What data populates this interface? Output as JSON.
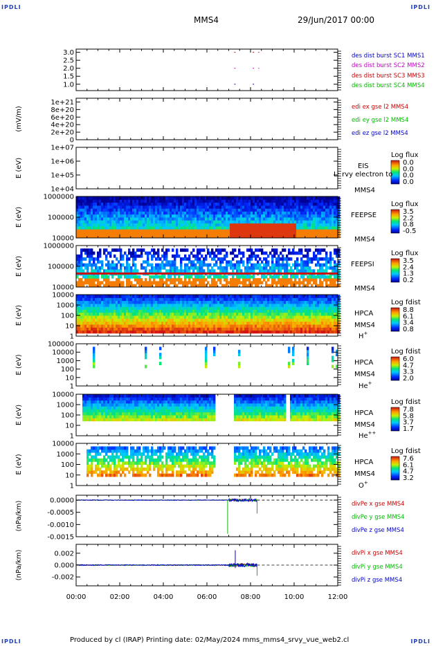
{
  "corners": {
    "tl": "IPDLI",
    "tr": "IPDLI",
    "bl": "IPDLI",
    "br": "IPDLI"
  },
  "header": {
    "spacecraft": "MMS4",
    "datetime": "29/Jun/2017 00:00"
  },
  "footer": "Produced by cl (IRAP)   Printing date: 02/May/2024   mms_mms4_srvy_vue_web2.cl",
  "chart_data": {
    "type": "multi-panel time series",
    "x_ticks": [
      "00:00",
      "02:00",
      "04:00",
      "06:00",
      "08:00",
      "10:00",
      "12:00"
    ],
    "xlim_hours": [
      0,
      12
    ],
    "panels": [
      {
        "id": "burst",
        "type": "scatter",
        "ylim": [
          0.6,
          3.2
        ],
        "yticks": [
          "3.0",
          "2.5",
          "2.0",
          "1.5",
          "1.0"
        ],
        "ytick_values": [
          3.0,
          2.5,
          2.0,
          1.5,
          1.0
        ],
        "legend": [
          {
            "label": "des dist burst SC1 MMS1",
            "color": "#0000cc"
          },
          {
            "label": "des dist burst SC2 MMS2",
            "color": "#cc00cc"
          },
          {
            "label": "des dist burst SC3 MMS3",
            "color": "#cc0000"
          },
          {
            "label": "des dist burst SC4 MMS4",
            "color": "#00bb00"
          }
        ],
        "series": [
          {
            "y": 3.0,
            "color": "#cc0000",
            "segments": [
              [
                7.25,
                7.45
              ],
              [
                8.1,
                8.4
              ]
            ]
          },
          {
            "y": 2.0,
            "color": "#cc00cc",
            "segments": [
              [
                7.25,
                7.45
              ],
              [
                8.1,
                8.4
              ]
            ]
          },
          {
            "y": 1.0,
            "color": "#0000cc",
            "segments": [
              [
                7.25,
                7.45
              ],
              [
                8.1,
                8.3
              ]
            ]
          }
        ]
      },
      {
        "id": "edi",
        "type": "line",
        "ylabel": "(mV/m)",
        "ylim": [
          0,
          1.1e+21
        ],
        "yticks": [
          "1e+21",
          "8e+20",
          "6e+20",
          "4e+20",
          "2e+20",
          "0"
        ],
        "ytick_values": [
          1e+21,
          8e+20,
          6e+20,
          4e+20,
          2e+20,
          0
        ],
        "legend": [
          {
            "label": "edi ex gse l2 MMS4",
            "color": "#cc0000"
          },
          {
            "label": "edi ey gse l2 MMS4",
            "color": "#00bb00"
          },
          {
            "label": "edi ez gse l2 MMS4",
            "color": "#0000cc"
          }
        ],
        "zero_line": true
      },
      {
        "id": "eis",
        "type": "heatmap",
        "ylabel": "E (eV)",
        "log": true,
        "ylim": [
          10000,
          10000000
        ],
        "yticks": [
          "1e+07",
          "1e+06",
          "1e+05",
          "1e+04"
        ],
        "ytick_values": [
          10000000,
          1000000,
          100000,
          10000
        ],
        "labels": [
          "EIS",
          "MMS4"
        ],
        "overlay_text": "L: rvy electron to",
        "colorbar": {
          "title": "Log flux",
          "ticks": [
            "0.0",
            "0.0",
            "0.0",
            "0.0"
          ]
        }
      },
      {
        "id": "feepse",
        "type": "heatmap",
        "ylabel": "E (eV)",
        "log": true,
        "ylim": [
          10000,
          1000000
        ],
        "yticks": [
          "1000000",
          "100000",
          "10000"
        ],
        "ytick_values": [
          1000000,
          100000,
          10000
        ],
        "labels": [
          "FEEPSE",
          "MMS4"
        ],
        "colorbar": {
          "title": "Log flux",
          "ticks": [
            "3.5",
            "2.2",
            "0.8",
            "-0.5"
          ]
        }
      },
      {
        "id": "feepsi",
        "type": "heatmap",
        "ylabel": "E (eV)",
        "log": true,
        "ylim": [
          10000,
          1000000
        ],
        "yticks": [
          "1000000",
          "100000",
          "10000"
        ],
        "ytick_values": [
          1000000,
          100000,
          10000
        ],
        "labels": [
          "FEEPSI",
          "MMS4"
        ],
        "colorbar": {
          "title": "Log flux",
          "ticks": [
            "3.5",
            "2.4",
            "1.3",
            "0.2"
          ]
        }
      },
      {
        "id": "hpca_h",
        "type": "heatmap",
        "ylabel": "E (eV)",
        "log": true,
        "ylim": [
          1,
          10000
        ],
        "yticks": [
          "10000",
          "1000",
          "100",
          "10",
          "1"
        ],
        "ytick_values": [
          10000,
          1000,
          100,
          10,
          1
        ],
        "labels": [
          "HPCA",
          "MMS4"
        ],
        "species": "H",
        "species_sup": "+",
        "colorbar": {
          "title": "Log fdist",
          "ticks": [
            "8.8",
            "6.1",
            "3.4",
            "0.8"
          ]
        }
      },
      {
        "id": "hpca_he",
        "type": "heatmap",
        "ylabel": "E (eV)",
        "log": true,
        "ylim": [
          1,
          100000
        ],
        "yticks": [
          "100000",
          "10000",
          "1000",
          "100",
          "10",
          "1"
        ],
        "ytick_values": [
          100000,
          10000,
          1000,
          100,
          10,
          1
        ],
        "labels": [
          "HPCA",
          "MMS4"
        ],
        "species": "He",
        "species_sup": "+",
        "colorbar": {
          "title": "Log fdist",
          "ticks": [
            "6.0",
            "4.7",
            "3.3",
            "2.0"
          ]
        }
      },
      {
        "id": "hpca_he2",
        "type": "heatmap",
        "ylabel": "E (eV)",
        "log": true,
        "ylim": [
          1,
          10000
        ],
        "yticks": [
          "10000",
          "1000",
          "100",
          "10",
          "1"
        ],
        "ytick_values": [
          10000,
          1000,
          100,
          10,
          1
        ],
        "labels": [
          "HPCA",
          "MMS4"
        ],
        "species": "He",
        "species_sup": "++",
        "colorbar": {
          "title": "Log fdist",
          "ticks": [
            "7.8",
            "5.8",
            "3.7",
            "1.7"
          ]
        }
      },
      {
        "id": "hpca_o",
        "type": "heatmap",
        "ylabel": "E (eV)",
        "log": true,
        "ylim": [
          1,
          10000
        ],
        "yticks": [
          "10000",
          "1000",
          "100",
          "10",
          "1"
        ],
        "ytick_values": [
          10000,
          1000,
          100,
          10,
          1
        ],
        "labels": [
          "HPCA",
          "MMS4"
        ],
        "species": "O",
        "species_sup": "+",
        "colorbar": {
          "title": "Log fdist",
          "ticks": [
            "7.6",
            "6.1",
            "4.7",
            "3.2"
          ]
        }
      },
      {
        "id": "divpe",
        "type": "line",
        "ylabel": "(nPa/km)",
        "ylim": [
          -0.0015,
          0.0002
        ],
        "yticks": [
          "0.0000",
          "-0.0005",
          "-0.0010",
          "-0.0015"
        ],
        "ytick_values": [
          0,
          -0.0005,
          -0.001,
          -0.0015
        ],
        "legend": [
          {
            "label": "divPe x gse MMS4",
            "color": "#cc0000"
          },
          {
            "label": "divPe y gse MMS4",
            "color": "#00bb00"
          },
          {
            "label": "divPe z gse MMS4",
            "color": "#0000cc"
          }
        ],
        "zero_line": true
      },
      {
        "id": "divpi",
        "type": "line",
        "ylabel": "(nPa/km)",
        "ylim": [
          -0.0035,
          0.0035
        ],
        "yticks": [
          "0.002",
          "0.000",
          "-0.002"
        ],
        "ytick_values": [
          0.002,
          0,
          -0.002
        ],
        "legend": [
          {
            "label": "divPi x gse MMS4",
            "color": "#cc0000"
          },
          {
            "label": "divPi y gse MMS4",
            "color": "#00bb00"
          },
          {
            "label": "divPi z gse MMS4",
            "color": "#0000cc"
          }
        ],
        "zero_line": true
      }
    ]
  }
}
